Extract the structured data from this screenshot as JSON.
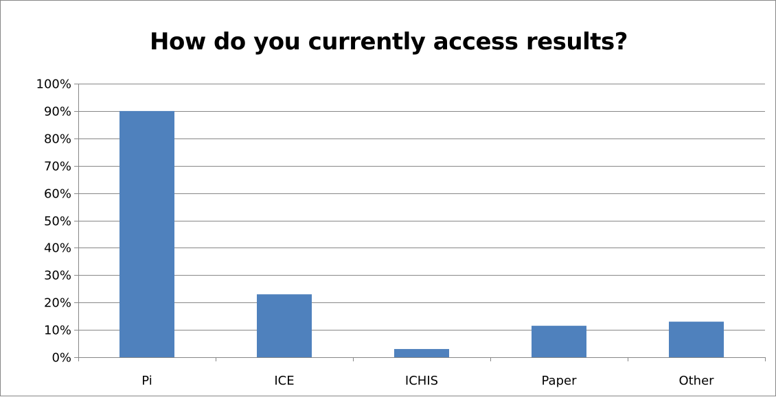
{
  "chart_data": {
    "type": "bar",
    "title": "How do you currently access results?",
    "xlabel": "",
    "ylabel": "",
    "categories": [
      "Pi",
      "ICE",
      "ICHIS",
      "Paper",
      "Other"
    ],
    "values": [
      90,
      23,
      3,
      11.5,
      13
    ],
    "ylim": [
      0,
      100
    ],
    "ytick_step": 10,
    "ytick_suffix": "%",
    "grid": true,
    "legend": "none",
    "bar_color": "#4f81bd",
    "grid_color": "#868686"
  }
}
